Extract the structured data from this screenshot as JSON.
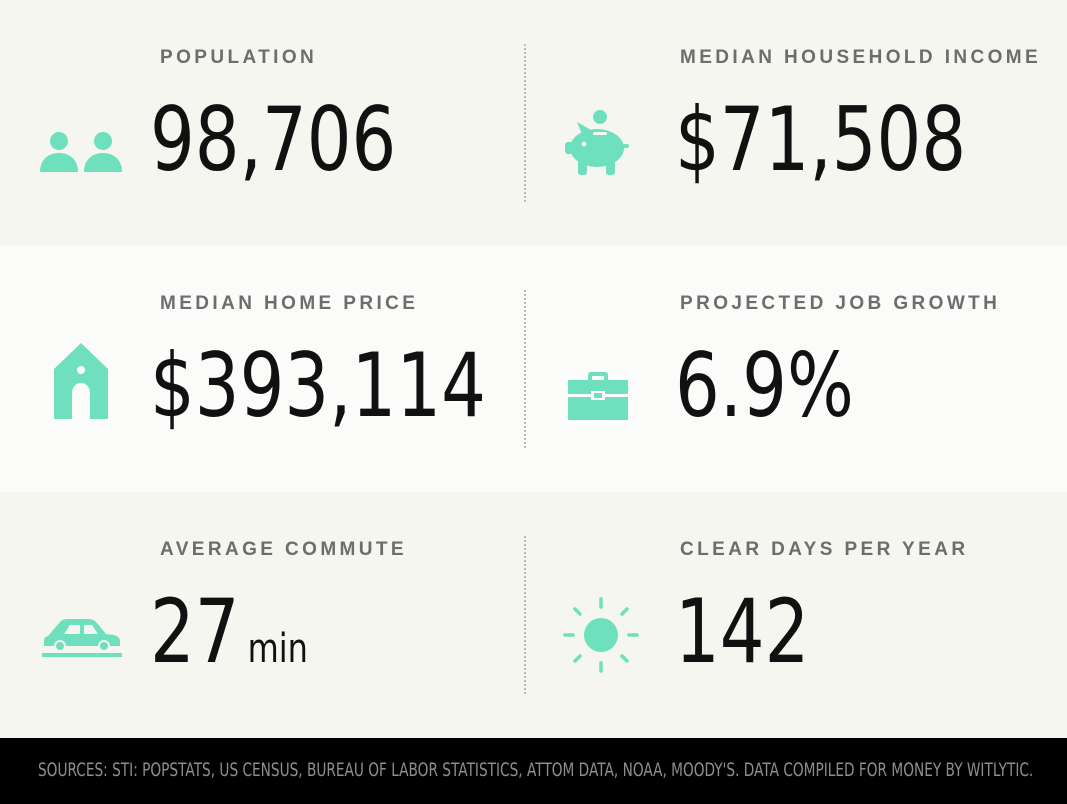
{
  "accent_color": "#6ee0bd",
  "stats": [
    {
      "label": "POPULATION",
      "value": "98,706",
      "icon": "people-icon"
    },
    {
      "label": "MEDIAN HOUSEHOLD INCOME",
      "value": "$71,508",
      "icon": "piggy-bank-icon"
    },
    {
      "label": "MEDIAN HOME PRICE",
      "value": "$393,114",
      "icon": "house-icon"
    },
    {
      "label": "PROJECTED JOB GROWTH",
      "value": "6.9%",
      "icon": "briefcase-icon"
    },
    {
      "label": "AVERAGE COMMUTE",
      "value": "27",
      "unit": "min",
      "icon": "car-icon"
    },
    {
      "label": "CLEAR DAYS PER YEAR",
      "value": "142",
      "icon": "sun-icon"
    }
  ],
  "footer": {
    "sources": "SOURCES: STI: POPSTATS, US CENSUS, BUREAU OF LABOR STATISTICS, ATTOM DATA, NOAA, MOODY'S. DATA COMPILED FOR MONEY BY WITLYTIC."
  }
}
